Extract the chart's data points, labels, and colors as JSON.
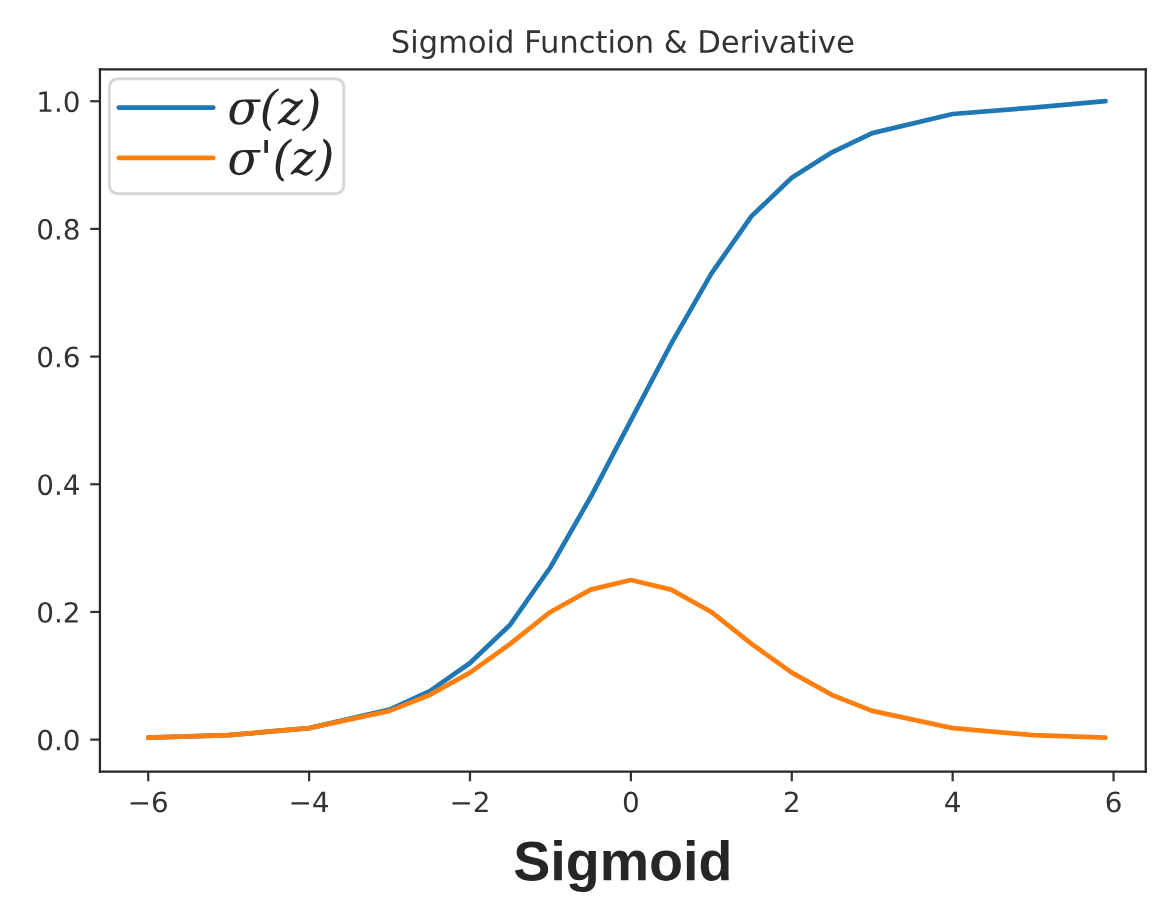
{
  "chart_data": {
    "type": "line",
    "title": "Sigmoid Function & Derivative",
    "xlabel": "Sigmoid",
    "x": [
      -6,
      -5,
      -4,
      -3,
      -2.5,
      -2,
      -1.5,
      -1,
      -0.5,
      0,
      0.5,
      1,
      1.5,
      2,
      2.5,
      3,
      4,
      5,
      5.9
    ],
    "series": [
      {
        "name": "σ(z)",
        "color": "#1f77b4",
        "values": [
          0.003,
          0.007,
          0.018,
          0.047,
          0.076,
          0.12,
          0.18,
          0.27,
          0.38,
          0.5,
          0.62,
          0.73,
          0.82,
          0.88,
          0.92,
          0.95,
          0.98,
          0.99,
          1.0
        ]
      },
      {
        "name": "σ'(z)",
        "color": "#ff7f0e",
        "values": [
          0.003,
          0.007,
          0.018,
          0.045,
          0.07,
          0.105,
          0.15,
          0.2,
          0.235,
          0.25,
          0.235,
          0.2,
          0.15,
          0.105,
          0.07,
          0.045,
          0.018,
          0.007,
          0.003
        ]
      }
    ],
    "xlim": [
      -6.6,
      6.4
    ],
    "ylim": [
      -0.05,
      1.05
    ],
    "xticks": [
      {
        "value": -6,
        "label": "−6"
      },
      {
        "value": -4,
        "label": "−4"
      },
      {
        "value": -2,
        "label": "−2"
      },
      0,
      2,
      4,
      6
    ],
    "yticks": [
      {
        "value": 0,
        "label": "0.0"
      },
      0.2,
      0.4,
      0.6,
      0.8,
      {
        "value": 1,
        "label": "1.0"
      }
    ],
    "legend": "top left",
    "grid": false,
    "marker": "none",
    "line_style": "solid"
  }
}
